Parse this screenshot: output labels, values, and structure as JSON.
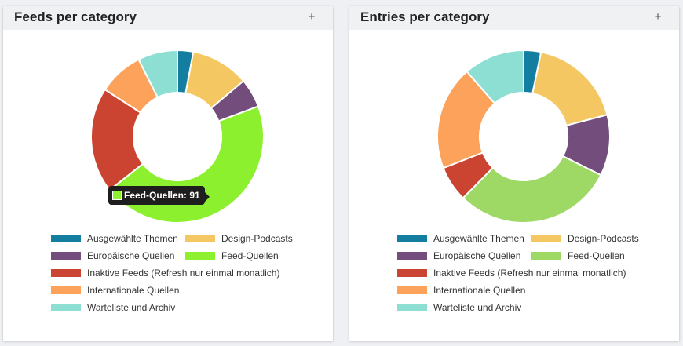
{
  "panels": [
    {
      "title": "Feeds per category",
      "add_label": "+",
      "tooltip": {
        "text": "Feed-Quellen: 91",
        "color": "#8df02e"
      }
    },
    {
      "title": "Entries per category",
      "add_label": "+"
    }
  ],
  "chart_data": [
    {
      "type": "pie",
      "title": "Feeds per category",
      "categories": [
        "Ausgewählte Themen",
        "Design-Podcasts",
        "Europäische Quellen",
        "Feed-Quellen",
        "Inaktive Feeds (Refresh nur einmal monatlich)",
        "Internationale Quellen",
        "Warteliste und Archiv"
      ],
      "values": [
        6,
        22,
        11,
        91,
        40,
        17,
        15
      ],
      "colors": [
        "#137ea0",
        "#f5c763",
        "#734e7d",
        "#8df02e",
        "#cb4431",
        "#fda25a",
        "#8ddfd3"
      ],
      "donut": true,
      "legend": "bottom"
    },
    {
      "type": "pie",
      "title": "Entries per category",
      "categories": [
        "Ausgewählte Themen",
        "Design-Podcasts",
        "Europäische Quellen",
        "Feed-Quellen",
        "Inaktive Feeds (Refresh nur einmal monatlich)",
        "Internationale Quellen",
        "Warteliste und Archiv"
      ],
      "values": [
        3.4,
        18.6,
        12,
        31.5,
        7,
        20.5,
        12
      ],
      "colors": [
        "#137ea0",
        "#f5c763",
        "#734e7d",
        "#9ed966",
        "#cb4431",
        "#fda25a",
        "#8ddfd3"
      ],
      "donut": true,
      "legend": "bottom"
    }
  ]
}
